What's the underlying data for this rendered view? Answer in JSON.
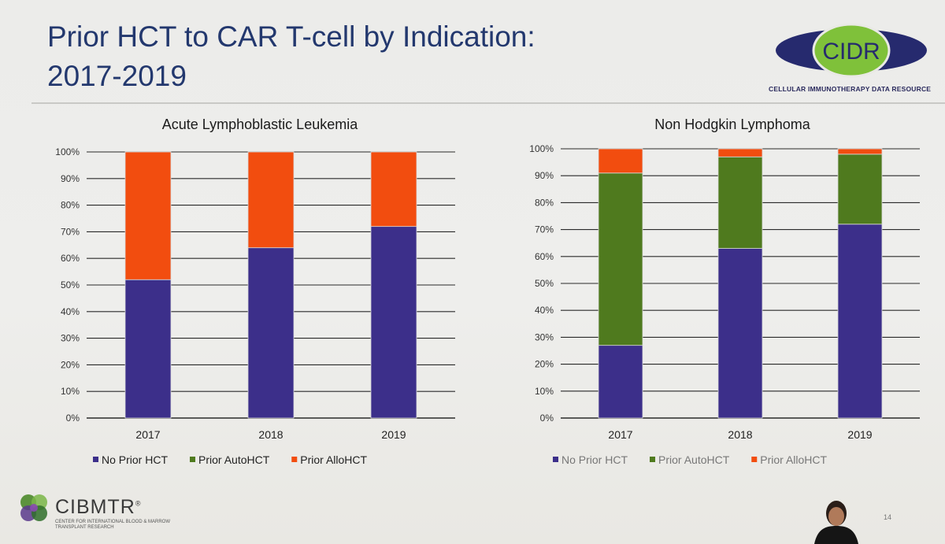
{
  "slide": {
    "title_line1": "Prior HCT to CAR T-cell by Indication:",
    "title_line2": "2017-2019",
    "page_number": "14"
  },
  "logos": {
    "cidr": {
      "text": "CIDR",
      "tagline": "CELLULAR IMMUNOTHERAPY DATA RESOURCE"
    },
    "cibmtr": {
      "text": "CIBMTR",
      "registered": "®",
      "subtitle": "CENTER FOR INTERNATIONAL BLOOD & MARROW TRANSPLANT RESEARCH"
    }
  },
  "colors": {
    "no_prior": "#3c2f8a",
    "auto": "#4f7a1e",
    "allo": "#f24d0f",
    "title": "#23386e",
    "cidr_green": "#7fc13a",
    "cidr_navy": "#262a6e",
    "grid": "#2a2a2a"
  },
  "chart_data": [
    {
      "type": "bar",
      "stacked": true,
      "title": "Acute Lymphoblastic Leukemia",
      "categories": [
        "2017",
        "2018",
        "2019"
      ],
      "ylim": [
        0,
        100
      ],
      "yticks": [
        "0%",
        "10%",
        "20%",
        "30%",
        "40%",
        "50%",
        "60%",
        "70%",
        "80%",
        "90%",
        "100%"
      ],
      "series": [
        {
          "name": "No Prior HCT",
          "color": "#3c2f8a",
          "values": [
            52,
            64,
            72
          ]
        },
        {
          "name": "Prior AutoHCT",
          "color": "#4f7a1e",
          "values": [
            0,
            0,
            0
          ]
        },
        {
          "name": "Prior AlloHCT",
          "color": "#f24d0f",
          "values": [
            48,
            36,
            28
          ]
        }
      ],
      "legend_position": "bottom",
      "grid": true
    },
    {
      "type": "bar",
      "stacked": true,
      "title": "Non Hodgkin Lymphoma",
      "categories": [
        "2017",
        "2018",
        "2019"
      ],
      "ylim": [
        0,
        100
      ],
      "yticks": [
        "0%",
        "10%",
        "20%",
        "30%",
        "40%",
        "50%",
        "60%",
        "70%",
        "80%",
        "90%",
        "100%"
      ],
      "series": [
        {
          "name": "No Prior HCT",
          "color": "#3c2f8a",
          "values": [
            27,
            63,
            72
          ]
        },
        {
          "name": "Prior AutoHCT",
          "color": "#4f7a1e",
          "values": [
            64,
            34,
            26
          ]
        },
        {
          "name": "Prior AlloHCT",
          "color": "#f24d0f",
          "values": [
            9,
            3,
            2
          ]
        }
      ],
      "legend_position": "bottom",
      "grid": true
    }
  ]
}
